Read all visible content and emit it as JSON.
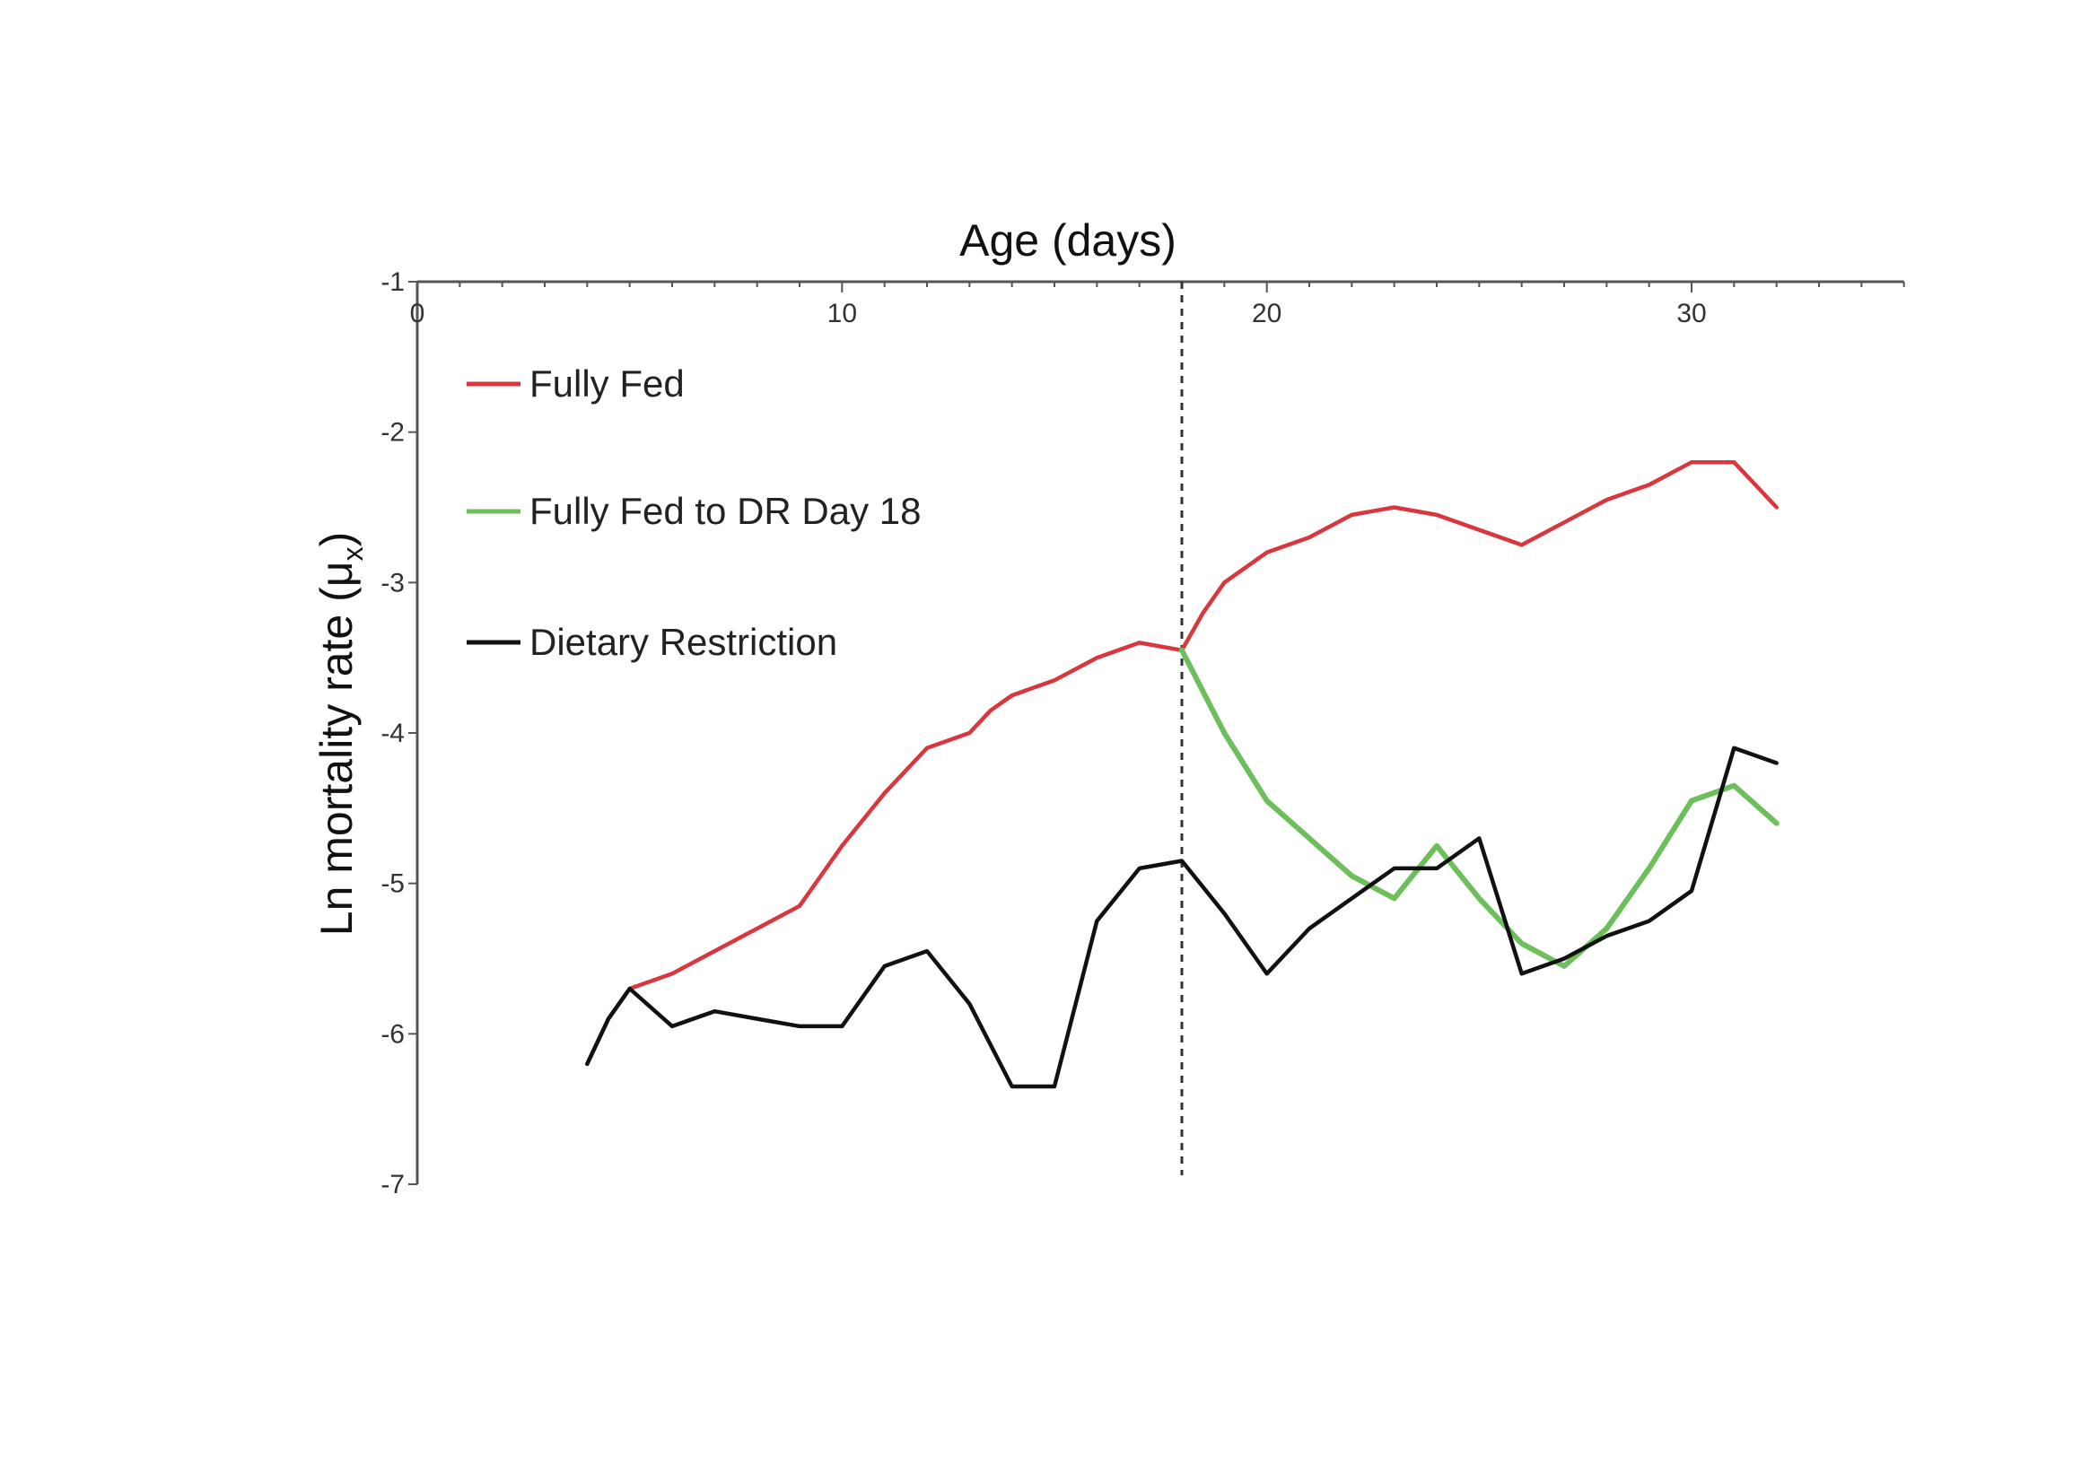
{
  "chart_data": {
    "type": "line",
    "xlabel": "Age (days)",
    "ylabel": "Ln mortality rate (μ",
    "ylabel_sub": "x",
    "ylabel_close": ")",
    "xlim": [
      0,
      35
    ],
    "ylim": [
      -7,
      -1
    ],
    "xticks": [
      0,
      10,
      20,
      30
    ],
    "yticks": [
      -1,
      -2,
      -3,
      -4,
      -5,
      -6,
      -7
    ],
    "x_axis_position": "top",
    "grid": false,
    "legend_position": "top-left",
    "reference_line": {
      "x": 18,
      "style": "dashed"
    },
    "series": [
      {
        "name": "Fully Fed",
        "color": "#d9363e",
        "points": [
          [
            4,
            -6.2
          ],
          [
            4.5,
            -5.9
          ],
          [
            5,
            -5.7
          ],
          [
            6,
            -5.6
          ],
          [
            7,
            -5.45
          ],
          [
            8,
            -5.3
          ],
          [
            9,
            -5.15
          ],
          [
            10,
            -4.75
          ],
          [
            11,
            -4.4
          ],
          [
            12,
            -4.1
          ],
          [
            13,
            -4.0
          ],
          [
            13.5,
            -3.85
          ],
          [
            14,
            -3.75
          ],
          [
            15,
            -3.65
          ],
          [
            16,
            -3.5
          ],
          [
            17,
            -3.4
          ],
          [
            18,
            -3.45
          ],
          [
            18.5,
            -3.2
          ],
          [
            19,
            -3.0
          ],
          [
            20,
            -2.8
          ],
          [
            21,
            -2.7
          ],
          [
            22,
            -2.55
          ],
          [
            23,
            -2.5
          ],
          [
            24,
            -2.55
          ],
          [
            25,
            -2.65
          ],
          [
            26,
            -2.75
          ],
          [
            27,
            -2.6
          ],
          [
            28,
            -2.45
          ],
          [
            29,
            -2.35
          ],
          [
            30,
            -2.2
          ],
          [
            31,
            -2.2
          ],
          [
            32,
            -2.5
          ]
        ]
      },
      {
        "name": "Fully Fed to DR Day 18",
        "color": "#6cbf5a",
        "points": [
          [
            18,
            -3.45
          ],
          [
            19,
            -4.0
          ],
          [
            20,
            -4.45
          ],
          [
            21,
            -4.7
          ],
          [
            22,
            -4.95
          ],
          [
            23,
            -5.1
          ],
          [
            24,
            -4.75
          ],
          [
            25,
            -5.1
          ],
          [
            26,
            -5.4
          ],
          [
            27,
            -5.55
          ],
          [
            28,
            -5.3
          ],
          [
            29,
            -4.9
          ],
          [
            30,
            -4.45
          ],
          [
            31,
            -4.35
          ],
          [
            32,
            -4.6
          ]
        ]
      },
      {
        "name": "Dietary Restriction",
        "color": "#111111",
        "points": [
          [
            4,
            -6.2
          ],
          [
            4.5,
            -5.9
          ],
          [
            5,
            -5.7
          ],
          [
            6,
            -5.95
          ],
          [
            7,
            -5.85
          ],
          [
            8,
            -5.9
          ],
          [
            9,
            -5.95
          ],
          [
            10,
            -5.95
          ],
          [
            11,
            -5.55
          ],
          [
            12,
            -5.45
          ],
          [
            13,
            -5.8
          ],
          [
            14,
            -6.35
          ],
          [
            15,
            -6.35
          ],
          [
            16,
            -5.25
          ],
          [
            17,
            -4.9
          ],
          [
            18,
            -4.85
          ],
          [
            19,
            -5.2
          ],
          [
            20,
            -5.6
          ],
          [
            21,
            -5.3
          ],
          [
            22,
            -5.1
          ],
          [
            23,
            -4.9
          ],
          [
            24,
            -4.9
          ],
          [
            25,
            -4.7
          ],
          [
            26,
            -5.6
          ],
          [
            27,
            -5.5
          ],
          [
            28,
            -5.35
          ],
          [
            29,
            -5.25
          ],
          [
            30,
            -5.05
          ],
          [
            31,
            -4.1
          ],
          [
            32,
            -4.2
          ]
        ]
      }
    ]
  }
}
